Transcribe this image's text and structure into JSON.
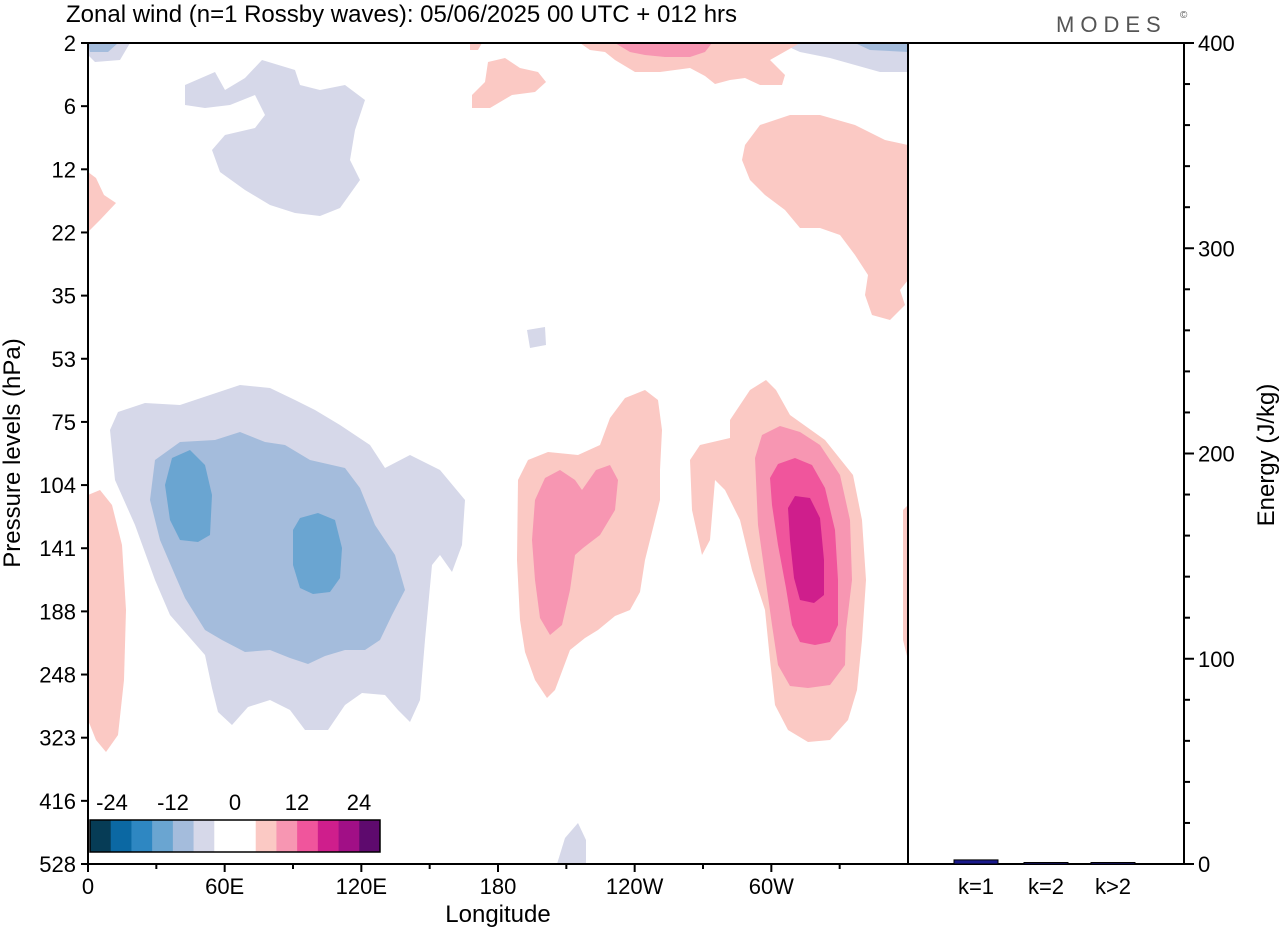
{
  "title": "Zonal wind (n=1 Rossby waves):  05/06/2025  00 UTC  + 012 hrs",
  "logo": "MODES",
  "logo_mark": "©",
  "chart_data": [
    {
      "type": "heatmap",
      "title": "Zonal wind (n=1 Rossby waves):  05/06/2025  00 UTC  + 012 hrs",
      "xlabel": "Longitude",
      "ylabel": "Pressure levels (hPa)",
      "x_ticks": [
        "0",
        "60E",
        "120E",
        "180",
        "120W",
        "60W"
      ],
      "x_tick_values": [
        0,
        60,
        120,
        180,
        240,
        300
      ],
      "xlim": [
        0,
        360
      ],
      "y_ticks": [
        "2",
        "6",
        "12",
        "22",
        "35",
        "53",
        "75",
        "104",
        "141",
        "188",
        "248",
        "323",
        "416",
        "528"
      ],
      "colorbar": {
        "labels": [
          "-24",
          "-12",
          "0",
          "12",
          "24"
        ],
        "levels": [
          -30,
          -27,
          -24,
          -21,
          -18,
          -15,
          -12,
          -9,
          -6,
          -3,
          0,
          3,
          6,
          9,
          12,
          15,
          18,
          21
        ],
        "colors": [
          "#063c56",
          "#0b68a3",
          "#2e87c2",
          "#6aa5d1",
          "#a4bcdc",
          "#d6d8e9",
          "#ffffff",
          "#ffffff",
          "#fbc9c4",
          "#f796b2",
          "#f0559c",
          "#cf1e8c",
          "#a10f86",
          "#5e0a6e"
        ]
      },
      "features": [
        {
          "kind": "easterly",
          "max_abs": 15,
          "center_lon": 45,
          "center_level": "104-141"
        },
        {
          "kind": "easterly",
          "max_abs": 15,
          "center_lon": 100,
          "center_level": "141"
        },
        {
          "kind": "westerly",
          "max_abs": 9,
          "center_lon": 215,
          "center_level": "141"
        },
        {
          "kind": "westerly",
          "max_abs": 15,
          "center_lon": 322,
          "center_level": "141"
        }
      ]
    },
    {
      "type": "bar",
      "ylabel": "Energy (J/kg)",
      "ylim": [
        0,
        400
      ],
      "y_ticks": [
        "0",
        "100",
        "200",
        "300",
        "400"
      ],
      "categories": [
        "k=1",
        "k=2",
        "k>2"
      ],
      "values": [
        2,
        0,
        0.5
      ],
      "bar_color": "#1a1a8c"
    }
  ]
}
